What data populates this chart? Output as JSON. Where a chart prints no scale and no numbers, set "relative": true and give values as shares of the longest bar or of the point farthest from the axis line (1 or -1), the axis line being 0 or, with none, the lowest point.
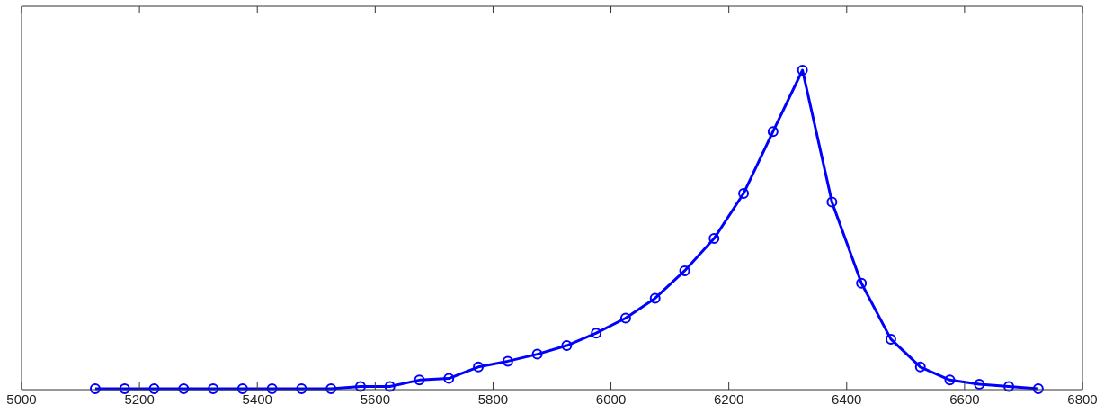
{
  "chart_data": {
    "type": "line",
    "relative": true,
    "tick_labels": "x",
    "grid": false,
    "legend": false,
    "marker": "circle",
    "line_style": "solid",
    "xlim": [
      5000,
      6800
    ],
    "xticks": [
      5000,
      5200,
      5400,
      5600,
      5800,
      6000,
      6200,
      6400,
      6600,
      6800
    ],
    "series": [
      {
        "color": "#0000ff",
        "x": [
          5125,
          5175,
          5225,
          5275,
          5325,
          5375,
          5425,
          5475,
          5525,
          5575,
          5625,
          5675,
          5725,
          5775,
          5825,
          5875,
          5925,
          5975,
          6025,
          6075,
          6125,
          6175,
          6225,
          6275,
          6325,
          6375,
          6425,
          6475,
          6525,
          6575,
          6625,
          6675,
          6725
        ],
        "values": [
          0.0025,
          0.0025,
          0.0025,
          0.0025,
          0.0025,
          0.0025,
          0.0025,
          0.0025,
          0.0025,
          0.01,
          0.01,
          0.03,
          0.035,
          0.071,
          0.089,
          0.111,
          0.138,
          0.177,
          0.224,
          0.286,
          0.372,
          0.473,
          0.614,
          0.808,
          1,
          0.587,
          0.333,
          0.158,
          0.071,
          0.03,
          0.017,
          0.01,
          0.0025
        ]
      }
    ]
  }
}
